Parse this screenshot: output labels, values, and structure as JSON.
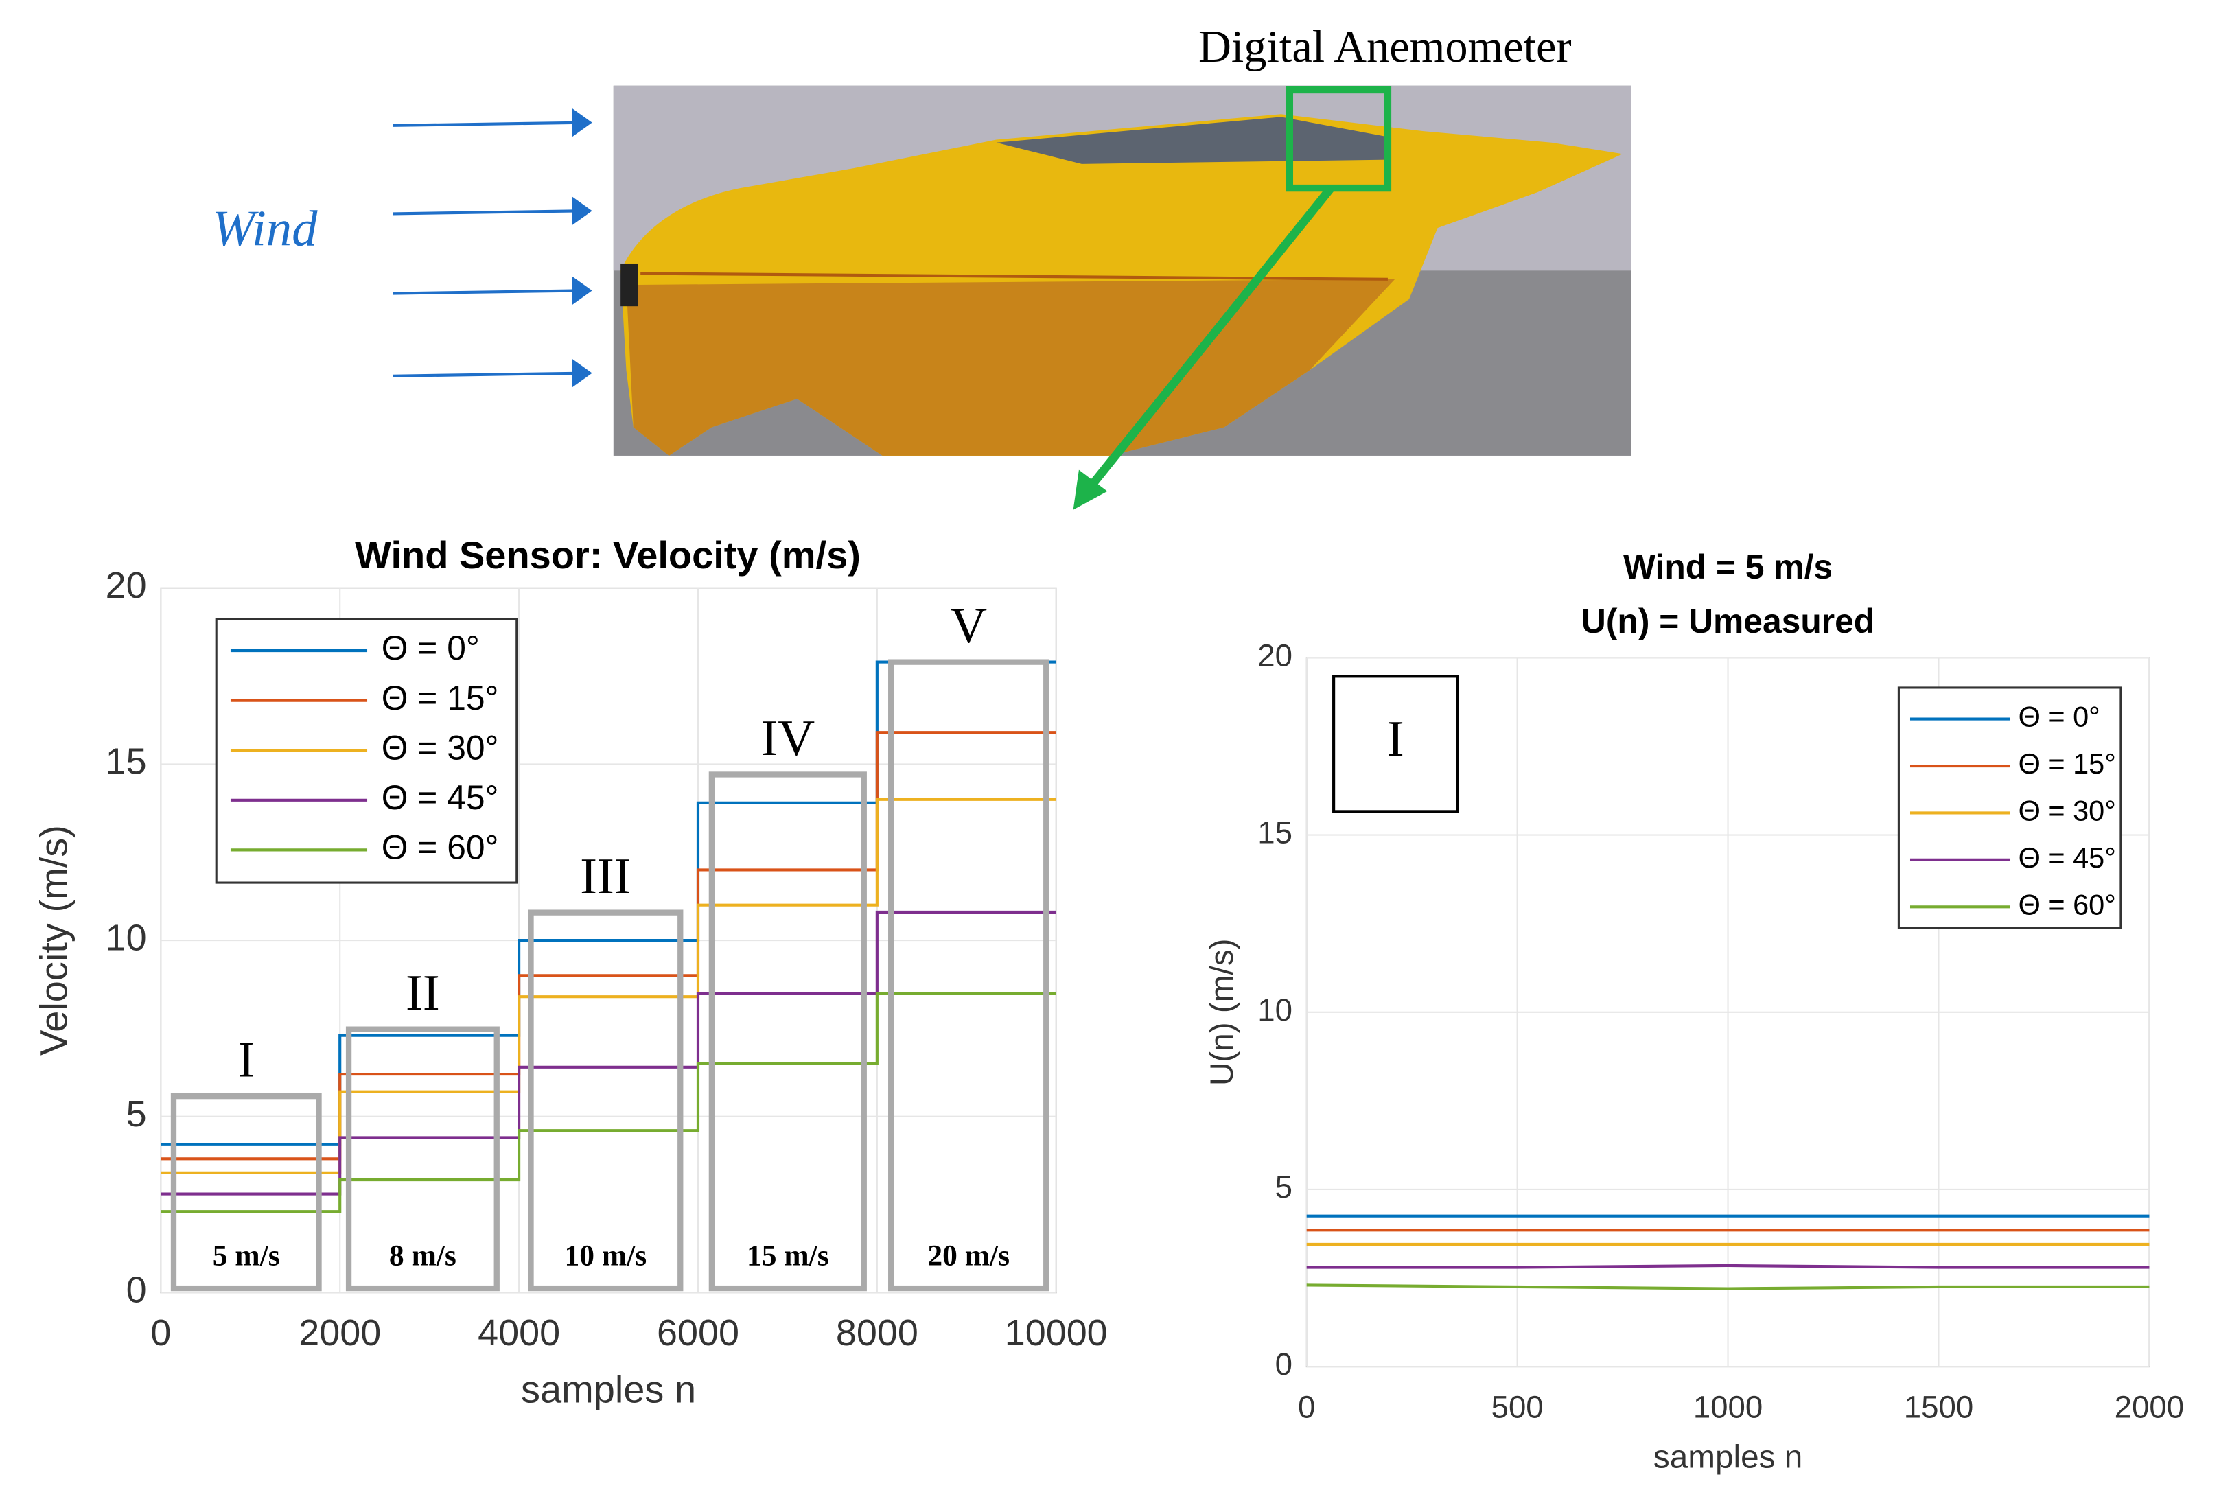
{
  "photo": {
    "sensor_label": "Digital Anemometer",
    "wind_label": "Wind"
  },
  "chart_data": [
    {
      "type": "line",
      "title": "Wind Sensor: Velocity (m/s)",
      "xlabel": "samples n",
      "ylabel": "Velocity (m/s)",
      "x": [
        0,
        2000,
        2000,
        4000,
        4000,
        6000,
        6000,
        8000,
        8000,
        10000
      ],
      "series": [
        {
          "name": "Θ = 0°",
          "color": "#0072BD",
          "values": [
            4.2,
            4.2,
            7.3,
            7.3,
            10.0,
            10.0,
            13.9,
            13.9,
            17.9,
            17.9
          ]
        },
        {
          "name": "Θ = 15°",
          "color": "#D95319",
          "values": [
            3.8,
            3.8,
            6.2,
            6.2,
            9.0,
            9.0,
            12.0,
            12.0,
            15.9,
            15.9
          ]
        },
        {
          "name": "Θ = 30°",
          "color": "#EDB120",
          "values": [
            3.4,
            3.4,
            5.7,
            5.7,
            8.4,
            8.4,
            11.0,
            11.0,
            14.0,
            14.0
          ]
        },
        {
          "name": "Θ = 45°",
          "color": "#7E2F8E",
          "values": [
            2.8,
            2.8,
            4.4,
            4.4,
            6.4,
            6.4,
            8.5,
            8.5,
            10.8,
            10.8
          ]
        },
        {
          "name": "Θ = 60°",
          "color": "#77AC30",
          "values": [
            2.3,
            2.3,
            3.2,
            3.2,
            4.6,
            4.6,
            6.5,
            6.5,
            8.5,
            8.5
          ]
        }
      ],
      "xlim": [
        0,
        10000
      ],
      "xticks": [
        0,
        2000,
        4000,
        6000,
        8000,
        10000
      ],
      "ylim": [
        0,
        20
      ],
      "yticks": [
        0,
        5,
        10,
        15,
        20
      ],
      "grid": true,
      "legend": "upper left",
      "annotations": [
        "I",
        "II",
        "III",
        "IV",
        "V"
      ],
      "speed_labels": [
        "5 m/s",
        "8 m/s",
        "10 m/s",
        "15 m/s",
        "20 m/s"
      ]
    },
    {
      "type": "line",
      "title": [
        "Wind = 5 m/s",
        "U(n) = Umeasured"
      ],
      "xlabel": "samples n",
      "ylabel": "U(n) (m/s)",
      "x": [
        0,
        500,
        1000,
        1500,
        2000
      ],
      "series": [
        {
          "name": "Θ = 0°",
          "color": "#0072BD",
          "values": [
            4.25,
            4.25,
            4.25,
            4.25,
            4.25
          ]
        },
        {
          "name": "Θ = 15°",
          "color": "#D95319",
          "values": [
            3.85,
            3.85,
            3.85,
            3.85,
            3.85
          ]
        },
        {
          "name": "Θ = 30°",
          "color": "#EDB120",
          "values": [
            3.45,
            3.45,
            3.45,
            3.45,
            3.45
          ]
        },
        {
          "name": "Θ = 45°",
          "color": "#7E2F8E",
          "values": [
            2.8,
            2.8,
            2.85,
            2.8,
            2.8
          ]
        },
        {
          "name": "Θ = 60°",
          "color": "#77AC30",
          "values": [
            2.3,
            2.25,
            2.2,
            2.25,
            2.25
          ]
        }
      ],
      "xlim": [
        0,
        2000
      ],
      "xticks": [
        0,
        500,
        1000,
        1500,
        2000
      ],
      "ylim": [
        0,
        20
      ],
      "yticks": [
        0,
        5,
        10,
        15,
        20
      ],
      "grid": true,
      "legend": "upper right",
      "annotations": [
        "I"
      ]
    }
  ]
}
